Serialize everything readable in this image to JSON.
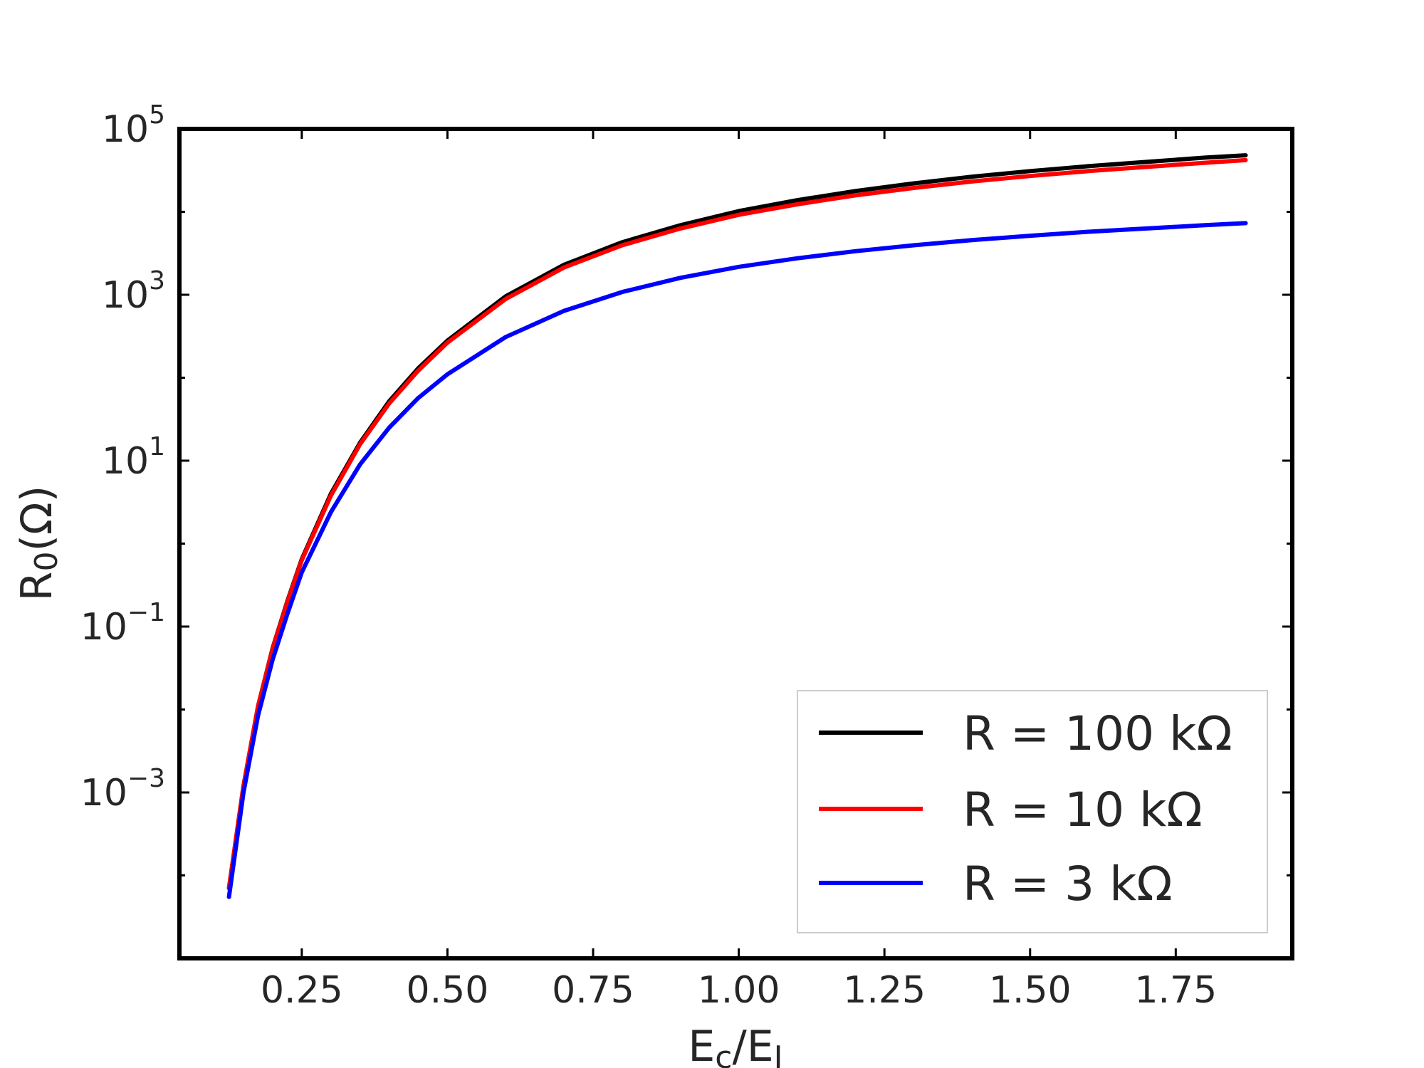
{
  "chart_data": {
    "type": "line",
    "title": "",
    "xlabel": {
      "base": "E",
      "sub1": "c",
      "slash": "/E",
      "sub2": "J"
    },
    "ylabel": {
      "base": "R",
      "sub": "0",
      "unit": "(Ω)"
    },
    "xlim": [
      0.04,
      1.95
    ],
    "ylim_log10": [
      -5.0,
      5.0
    ],
    "yscale": "log",
    "grid": false,
    "legend_position": "lower-right",
    "x_ticks": [
      {
        "value": 0.25,
        "label": "0.25"
      },
      {
        "value": 0.5,
        "label": "0.50"
      },
      {
        "value": 0.75,
        "label": "0.75"
      },
      {
        "value": 1.0,
        "label": "1.00"
      },
      {
        "value": 1.25,
        "label": "1.25"
      },
      {
        "value": 1.5,
        "label": "1.50"
      },
      {
        "value": 1.75,
        "label": "1.75"
      }
    ],
    "y_ticks": [
      {
        "exp": 5,
        "label_base": "10",
        "label_exp": "5"
      },
      {
        "exp": 3,
        "label_base": "10",
        "label_exp": "3"
      },
      {
        "exp": 1,
        "label_base": "10",
        "label_exp": "1"
      },
      {
        "exp": -1,
        "label_base": "10",
        "label_exp": "−1"
      },
      {
        "exp": -3,
        "label_base": "10",
        "label_exp": "−3"
      }
    ],
    "x": [
      0.125,
      0.15,
      0.175,
      0.2,
      0.225,
      0.25,
      0.3,
      0.35,
      0.4,
      0.45,
      0.5,
      0.6,
      0.7,
      0.8,
      0.9,
      1.0,
      1.1,
      1.2,
      1.3,
      1.4,
      1.5,
      1.6,
      1.7,
      1.8,
      1.87
    ],
    "series": [
      {
        "name": "R = 100 kΩ",
        "color": "#000000",
        "y": [
          7e-05,
          0.0012,
          0.011,
          0.055,
          0.2,
          0.65,
          4.0,
          16.5,
          52,
          130,
          280,
          960,
          2300,
          4300,
          6900,
          10200,
          13800,
          17800,
          22000,
          26500,
          31000,
          35500,
          40000,
          45000,
          48000
        ]
      },
      {
        "name": "R = 10 kΩ",
        "color": "#ff0000",
        "y": [
          7e-05,
          0.0012,
          0.011,
          0.054,
          0.195,
          0.63,
          3.8,
          15.8,
          49,
          122,
          265,
          890,
          2130,
          3950,
          6300,
          9200,
          12300,
          15800,
          19400,
          23200,
          27000,
          31000,
          34800,
          39000,
          42000
        ]
      },
      {
        "name": "R = 3 kΩ",
        "color": "#0000ff",
        "y": [
          5.5e-05,
          0.001,
          0.0085,
          0.04,
          0.14,
          0.45,
          2.4,
          9.0,
          25,
          57,
          110,
          310,
          640,
          1080,
          1600,
          2170,
          2750,
          3350,
          3950,
          4550,
          5150,
          5750,
          6300,
          6900,
          7300
        ]
      }
    ]
  }
}
